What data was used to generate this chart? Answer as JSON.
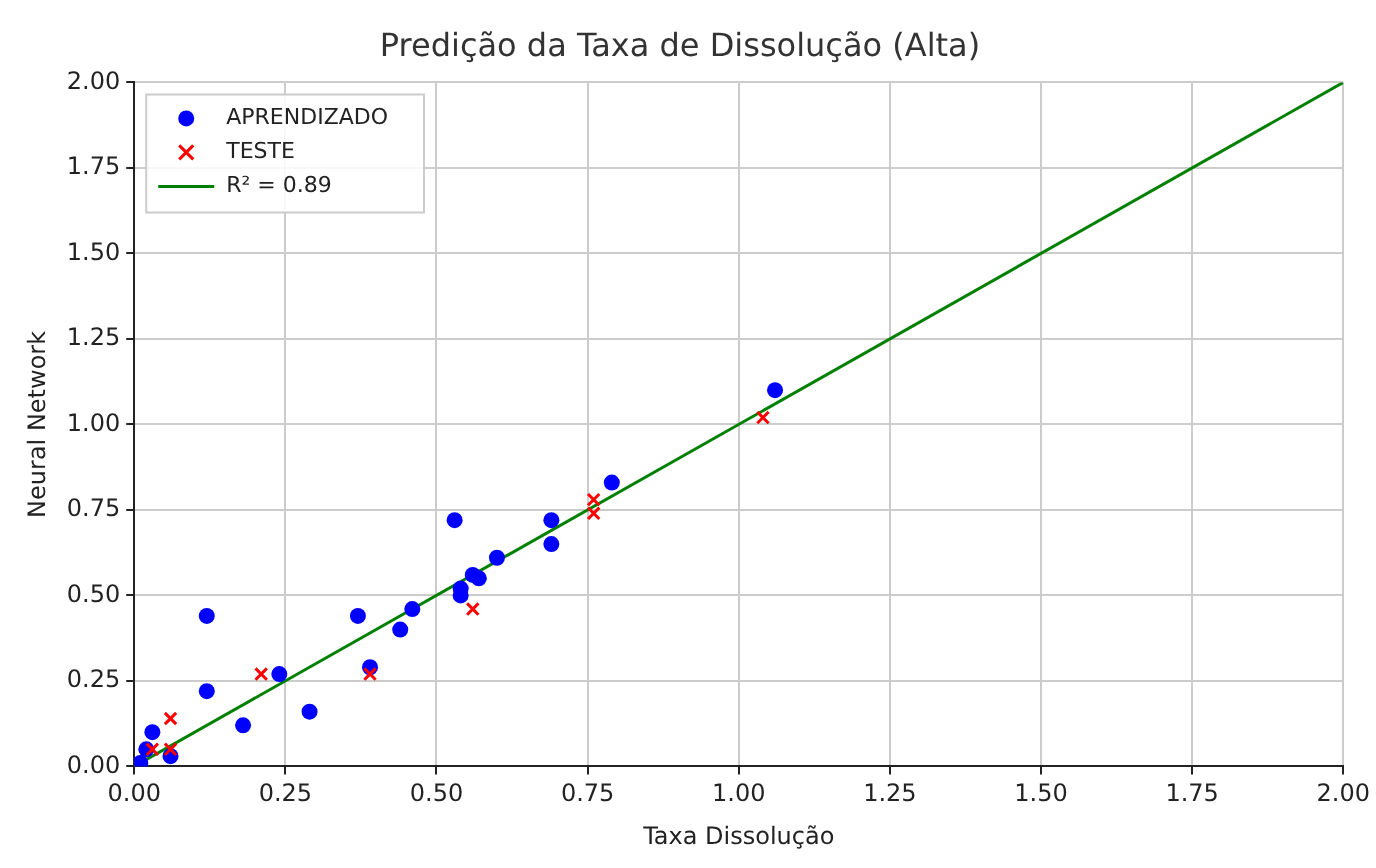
{
  "chart_data": {
    "type": "scatter",
    "title": "Predição da Taxa de Dissolução (Alta)",
    "xlabel": "Taxa Dissolução",
    "ylabel": "Neural Network",
    "series": [
      {
        "name": "APRENDIZADO",
        "color": "#0000ff",
        "marker": "circle",
        "x": [
          0.01,
          0.02,
          0.03,
          0.06,
          0.12,
          0.12,
          0.18,
          0.24,
          0.29,
          0.37,
          0.39,
          0.44,
          0.46,
          0.53,
          0.54,
          0.54,
          0.56,
          0.57,
          0.6,
          0.69,
          0.69,
          0.79,
          1.06
        ],
        "values": [
          0.01,
          0.05,
          0.1,
          0.03,
          0.44,
          0.22,
          0.12,
          0.27,
          0.16,
          0.44,
          0.29,
          0.4,
          0.46,
          0.72,
          0.52,
          0.5,
          0.56,
          0.55,
          0.61,
          0.72,
          0.65,
          0.83,
          1.1
        ]
      },
      {
        "name": "TESTE",
        "color": "#ff0000",
        "marker": "cross",
        "x": [
          0.03,
          0.06,
          0.06,
          0.21,
          0.39,
          0.56,
          0.76,
          0.76,
          1.04
        ],
        "values": [
          0.05,
          0.05,
          0.14,
          0.27,
          0.27,
          0.46,
          0.78,
          0.74,
          1.02
        ]
      },
      {
        "name": "R² = 0.89",
        "type": "line",
        "color": "#008000",
        "marker": "none",
        "line_style": "solid",
        "x": [
          0,
          2
        ],
        "values": [
          0,
          2
        ]
      }
    ],
    "xlim": [
      0,
      2
    ],
    "ylim": [
      0,
      2
    ],
    "xticks": [
      {
        "value": 0,
        "label": "0.00"
      },
      {
        "value": 0.25,
        "label": "0.25"
      },
      {
        "value": 0.5,
        "label": "0.50"
      },
      {
        "value": 0.75,
        "label": "0.75"
      },
      {
        "value": 1,
        "label": "1.00"
      },
      {
        "value": 1.25,
        "label": "1.25"
      },
      {
        "value": 1.5,
        "label": "1.50"
      },
      {
        "value": 1.75,
        "label": "1.75"
      },
      {
        "value": 2,
        "label": "2.00"
      }
    ],
    "yticks": [
      {
        "value": 0,
        "label": "0.00"
      },
      {
        "value": 0.25,
        "label": "0.25"
      },
      {
        "value": 0.5,
        "label": "0.50"
      },
      {
        "value": 0.75,
        "label": "0.75"
      },
      {
        "value": 1,
        "label": "1.00"
      },
      {
        "value": 1.25,
        "label": "1.25"
      },
      {
        "value": 1.5,
        "label": "1.50"
      },
      {
        "value": 1.75,
        "label": "1.75"
      },
      {
        "value": 2,
        "label": "2.00"
      }
    ],
    "grid": true,
    "legend": "top left"
  }
}
